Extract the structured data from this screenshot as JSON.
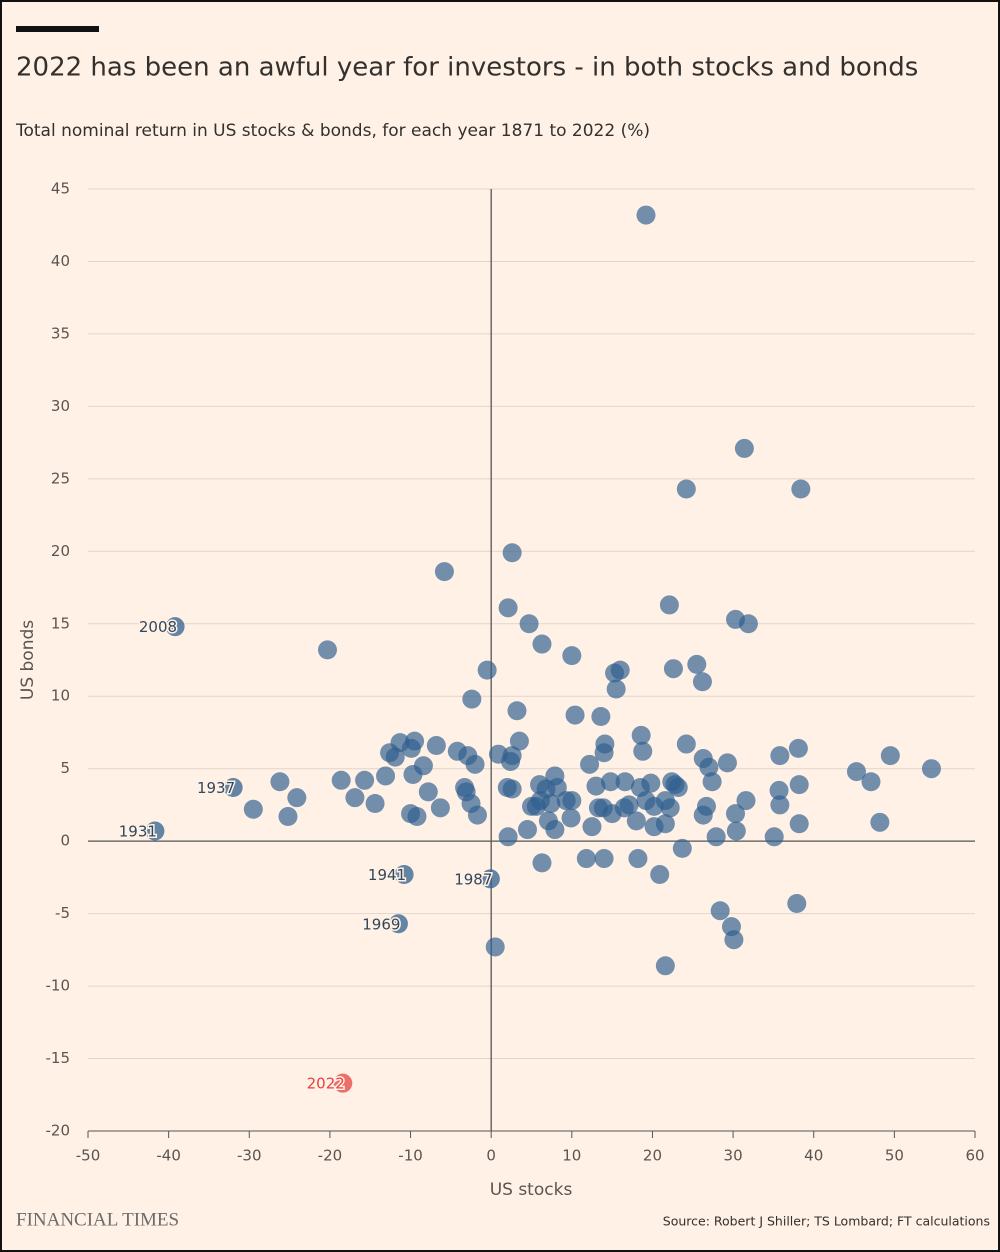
{
  "chart_data": {
    "type": "scatter",
    "title": "2022 has been an awful year for investors - in both stocks and bonds",
    "subtitle": "Total nominal return in US stocks & bonds, for each year 1871 to 2022 (%)",
    "x_label": "US stocks",
    "y_label": "US bonds",
    "source": "Source: Robert J Shiller; TS Lombard; FT calculations",
    "brand": "FINANCIAL TIMES",
    "color": "#2f5f8f",
    "grid": true,
    "xlim": [
      -50,
      60
    ],
    "xticks": [
      -50,
      -40,
      -30,
      -20,
      -10,
      0,
      10,
      20,
      30,
      40,
      50,
      60
    ],
    "ylim": [
      -20,
      45
    ],
    "yticks": [
      -20,
      -15,
      -10,
      -5,
      0,
      5,
      10,
      15,
      20,
      25,
      30,
      35,
      40,
      45
    ],
    "x": [
      19.2,
      31.4,
      24.2,
      38.4,
      2.6,
      -5.8,
      -20.3,
      2.1,
      22.1,
      4.7,
      30.3,
      31.9,
      6.3,
      -0.5,
      10.0,
      15.3,
      16.0,
      22.6,
      25.5,
      26.2,
      15.5,
      -2.4,
      3.2,
      10.4,
      13.6,
      18.6,
      18.8,
      3.5,
      24.2,
      38.1,
      14.1,
      14.0,
      -6.8,
      -4.2,
      -12.6,
      -11.3,
      -9.5,
      -9.9,
      -11.9,
      -2.9,
      -2.0,
      0.9,
      2.4,
      2.6,
      12.2,
      26.3,
      27.0,
      29.3,
      35.8,
      49.5,
      54.6,
      45.3,
      47.1,
      -8.4,
      -9.7,
      -13.1,
      -15.7,
      -18.6,
      -26.2,
      -24.1,
      -29.5,
      -25.2,
      -16.9,
      -14.4,
      -7.8,
      -6.3,
      -3.3,
      -3.1,
      -2.5,
      -1.7,
      -10.0,
      -9.2,
      2.0,
      2.6,
      6.0,
      6.8,
      7.9,
      8.2,
      5.0,
      5.6,
      6.1,
      7.4,
      9.3,
      10.0,
      7.1,
      7.9,
      4.5,
      2.1,
      13.0,
      14.8,
      16.6,
      18.5,
      19.8,
      22.4,
      22.8,
      23.2,
      27.4,
      13.3,
      13.9,
      15.0,
      16.5,
      17.1,
      19.2,
      20.2,
      21.6,
      22.2,
      18.0,
      20.2,
      21.6,
      26.3,
      26.7,
      30.3,
      31.6,
      27.9,
      30.4,
      35.7,
      35.8,
      38.2,
      35.1,
      38.2,
      48.2,
      12.5,
      9.9,
      6.3,
      11.8,
      14.0,
      18.2,
      20.9,
      23.7,
      0.5,
      28.4,
      29.8,
      30.1,
      37.9,
      21.6
    ],
    "values": [
      43.2,
      27.1,
      24.3,
      24.3,
      19.9,
      18.6,
      13.2,
      16.1,
      16.3,
      15.0,
      15.3,
      15.0,
      13.6,
      11.8,
      12.8,
      11.6,
      11.8,
      11.9,
      12.2,
      11.0,
      10.5,
      9.8,
      9.0,
      8.7,
      8.6,
      7.3,
      6.2,
      6.9,
      6.7,
      6.4,
      6.7,
      6.1,
      6.6,
      6.2,
      6.1,
      6.8,
      6.9,
      6.4,
      5.8,
      5.9,
      5.3,
      6.0,
      5.5,
      5.9,
      5.3,
      5.7,
      5.1,
      5.4,
      5.9,
      5.9,
      5.0,
      4.8,
      4.1,
      5.2,
      4.6,
      4.5,
      4.2,
      4.2,
      4.1,
      3.0,
      2.2,
      1.7,
      3.0,
      2.6,
      3.4,
      2.3,
      3.7,
      3.4,
      2.6,
      1.8,
      1.9,
      1.7,
      3.7,
      3.6,
      3.9,
      3.6,
      4.5,
      3.7,
      2.4,
      2.4,
      2.8,
      2.6,
      2.8,
      2.8,
      1.4,
      0.8,
      0.8,
      0.3,
      3.8,
      4.1,
      4.1,
      3.7,
      4.0,
      4.1,
      3.9,
      3.7,
      4.1,
      2.3,
      2.3,
      1.9,
      2.3,
      2.5,
      2.8,
      2.4,
      2.8,
      2.3,
      1.4,
      1.0,
      1.2,
      1.8,
      2.4,
      1.9,
      2.8,
      0.3,
      0.7,
      3.5,
      2.5,
      3.9,
      0.3,
      1.2,
      1.3,
      1.0,
      1.6,
      -1.5,
      -1.2,
      -1.2,
      -1.2,
      -2.3,
      -0.5,
      -7.3,
      -4.8,
      -5.9,
      -6.8,
      -4.3,
      -8.6
    ],
    "annotations": [
      {
        "label": "2008",
        "x": -39.2,
        "y": 14.8
      },
      {
        "label": "1937",
        "x": -32.0,
        "y": 3.7
      },
      {
        "label": "1931",
        "x": -41.7,
        "y": 0.7
      },
      {
        "label": "1941",
        "x": -10.8,
        "y": -2.3
      },
      {
        "label": "1987",
        "x": -0.1,
        "y": -2.6
      },
      {
        "label": "1969",
        "x": -11.5,
        "y": -5.7
      },
      {
        "label": "2022",
        "x": -18.4,
        "y": -16.7,
        "color": "#e8413f"
      }
    ]
  }
}
